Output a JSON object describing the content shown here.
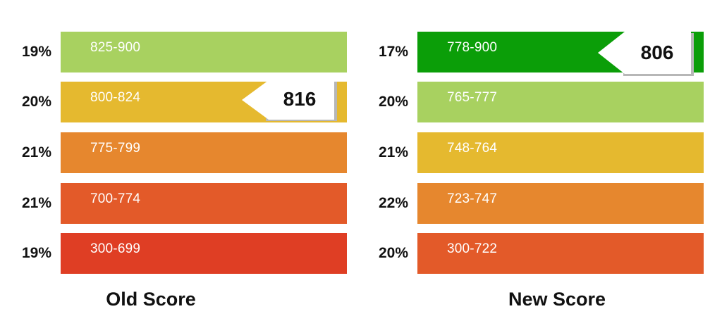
{
  "chart_data": [
    {
      "type": "bar",
      "title": "Old Score",
      "categories": [
        "825-900",
        "800-824",
        "775-799",
        "700-774",
        "300-699"
      ],
      "values": [
        19,
        20,
        21,
        21,
        19
      ],
      "value_labels": [
        "19%",
        "20%",
        "21%",
        "21%",
        "19%"
      ],
      "unit": "%",
      "colors": [
        "#a8d160",
        "#e5b92f",
        "#e6872e",
        "#e35a29",
        "#df3e24"
      ],
      "highlight": {
        "score": "816",
        "category": "800-824"
      }
    },
    {
      "type": "bar",
      "title": "New Score",
      "categories": [
        "778-900",
        "765-777",
        "748-764",
        "723-747",
        "300-722"
      ],
      "values": [
        17,
        20,
        21,
        22,
        20
      ],
      "value_labels": [
        "17%",
        "20%",
        "21%",
        "22%",
        "20%"
      ],
      "unit": "%",
      "colors": [
        "#0b9e08",
        "#a8d160",
        "#e5b92f",
        "#e6872e",
        "#e35a29"
      ],
      "highlight": {
        "score": "806",
        "category": "778-900"
      }
    }
  ]
}
